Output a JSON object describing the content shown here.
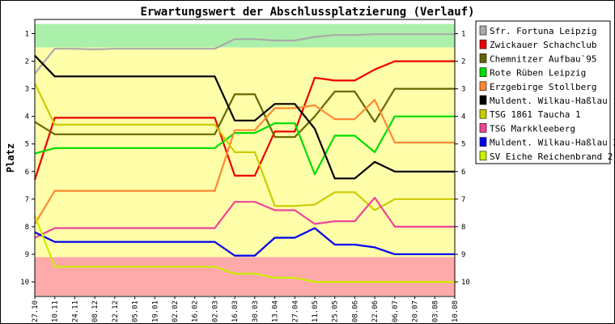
{
  "chart_data": {
    "type": "line",
    "title": "Erwartungswert der Abschlussplatzierung (Verlauf)",
    "ylabel": "Platz",
    "xlabel": "",
    "ylim": [
      1,
      10
    ],
    "y_ticks": [
      "1",
      "2",
      "3",
      "4",
      "5",
      "6",
      "7",
      "8",
      "9",
      "10"
    ],
    "grid": false,
    "legend_position": "right",
    "categories": [
      "27.10",
      "10.11",
      "24.11",
      "08.12",
      "22.12",
      "05.01",
      "19.01",
      "02.02",
      "16.02",
      "02.03",
      "16.03",
      "30.03",
      "13.04",
      "27.04",
      "11.05",
      "25.05",
      "08.06",
      "22.06",
      "06.07",
      "20.07",
      "03.08",
      "10.08"
    ],
    "bands": [
      {
        "from": 0.65,
        "to": 1.5,
        "color": "#aaf0aa"
      },
      {
        "from": 1.5,
        "to": 9.1,
        "color": "#ffffaa"
      },
      {
        "from": 9.1,
        "to": 10.5,
        "color": "#ffaaaa"
      }
    ],
    "series": [
      {
        "name": "Sfr. Fortuna Leipzig",
        "color": "#aaaaaa",
        "values": [
          2.45,
          1.55,
          1.55,
          1.57,
          1.55,
          1.55,
          1.55,
          1.55,
          1.55,
          1.55,
          1.2,
          1.2,
          1.25,
          1.25,
          1.12,
          1.05,
          1.05,
          1.02,
          1.02,
          1.02,
          1.02,
          1.02
        ]
      },
      {
        "name": "Zwickauer Schachclub",
        "color": "#ee0000",
        "values": [
          6.3,
          4.05,
          4.05,
          4.05,
          4.05,
          4.05,
          4.05,
          4.05,
          4.05,
          4.05,
          6.15,
          6.15,
          4.55,
          4.55,
          2.6,
          2.7,
          2.7,
          2.3,
          2.0,
          2.0,
          2.0,
          2.0
        ]
      },
      {
        "name": "Chemnitzer Aufbau`95",
        "color": "#666600",
        "values": [
          4.2,
          4.65,
          4.65,
          4.65,
          4.65,
          4.65,
          4.65,
          4.65,
          4.65,
          4.65,
          3.2,
          3.2,
          4.75,
          4.75,
          4.0,
          3.1,
          3.1,
          4.2,
          3.0,
          3.0,
          3.0,
          3.0
        ]
      },
      {
        "name": "Rote Rüben Leipzig",
        "color": "#00dd00",
        "values": [
          5.35,
          5.15,
          5.15,
          5.15,
          5.15,
          5.15,
          5.15,
          5.15,
          5.15,
          5.15,
          4.6,
          4.6,
          4.25,
          4.25,
          6.1,
          4.7,
          4.7,
          5.3,
          4.0,
          4.0,
          4.0,
          4.0
        ]
      },
      {
        "name": "Erzgebirge Stollberg",
        "color": "#ff8833",
        "values": [
          7.9,
          6.7,
          6.7,
          6.7,
          6.7,
          6.7,
          6.7,
          6.7,
          6.7,
          6.7,
          4.5,
          4.5,
          3.7,
          3.7,
          3.6,
          4.1,
          4.1,
          3.4,
          4.95,
          4.95,
          4.95,
          4.95
        ]
      },
      {
        "name": "Muldent. Wilkau-Haßlau 1",
        "color": "#000000",
        "values": [
          1.8,
          2.55,
          2.55,
          2.55,
          2.55,
          2.55,
          2.55,
          2.55,
          2.55,
          2.55,
          4.15,
          4.15,
          3.55,
          3.55,
          4.45,
          6.25,
          6.25,
          5.65,
          6.0,
          6.0,
          6.0,
          6.0
        ]
      },
      {
        "name": "TSG 1861 Taucha 1",
        "color": "#cccc00",
        "values": [
          2.8,
          4.3,
          4.3,
          4.3,
          4.3,
          4.3,
          4.3,
          4.3,
          4.3,
          4.3,
          5.3,
          5.3,
          7.25,
          7.25,
          7.2,
          6.75,
          6.75,
          7.4,
          7.0,
          7.0,
          7.0,
          7.0
        ]
      },
      {
        "name": "TSG Markkleeberg",
        "color": "#ee4499",
        "values": [
          8.4,
          8.05,
          8.05,
          8.05,
          8.05,
          8.05,
          8.05,
          8.05,
          8.05,
          8.05,
          7.1,
          7.1,
          7.4,
          7.4,
          7.9,
          7.8,
          7.8,
          6.95,
          8.0,
          8.0,
          8.0,
          8.0
        ]
      },
      {
        "name": "Muldent. Wilkau-Haßlau 2",
        "color": "#0000ee",
        "values": [
          8.2,
          8.55,
          8.55,
          8.55,
          8.55,
          8.55,
          8.55,
          8.55,
          8.55,
          8.55,
          9.05,
          9.05,
          8.4,
          8.4,
          8.05,
          8.65,
          8.65,
          8.75,
          9.0,
          9.0,
          9.0,
          9.0
        ]
      },
      {
        "name": "SV Eiche Reichenbrand 2",
        "color": "#ccee00",
        "values": [
          7.6,
          9.45,
          9.45,
          9.45,
          9.45,
          9.45,
          9.45,
          9.45,
          9.45,
          9.45,
          9.7,
          9.7,
          9.85,
          9.85,
          10.0,
          10.0,
          10.0,
          10.0,
          10.0,
          10.0,
          10.0,
          10.0
        ]
      }
    ]
  }
}
